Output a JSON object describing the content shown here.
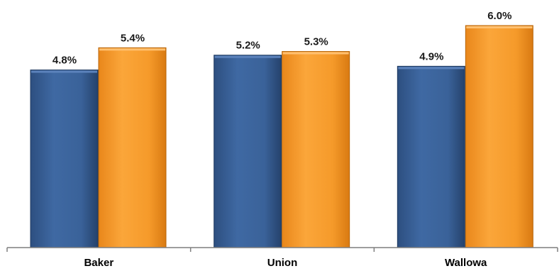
{
  "chart_data": {
    "type": "bar",
    "categories": [
      "Baker",
      "Union",
      "Wallowa"
    ],
    "series": [
      {
        "values": [
          4.8,
          5.2,
          4.9
        ],
        "labels": [
          "4.8%",
          "5.2%",
          "4.9%"
        ],
        "color": "#3A6299"
      },
      {
        "values": [
          5.4,
          5.3,
          6.0
        ],
        "labels": [
          "5.4%",
          "5.3%",
          "6.0%"
        ],
        "color": "#F59A2A"
      }
    ],
    "ylim": [
      0,
      6.0
    ],
    "grid": false,
    "legend": "none",
    "axis_color": "#7f7f7f"
  }
}
